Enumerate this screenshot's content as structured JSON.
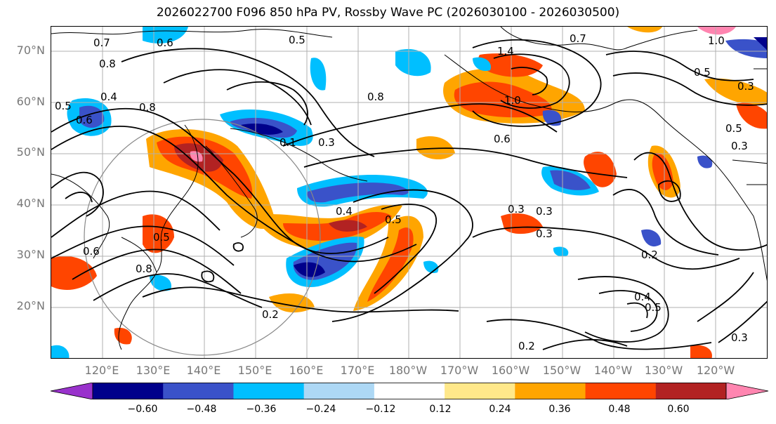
{
  "title": "2026022700 F096 850 hPa PV, Rossby Wave PC (2026030100 - 2026030500)",
  "lat_labels": [
    "70°N",
    "60°N",
    "50°N",
    "40°N",
    "30°N",
    "20°N"
  ],
  "lon_labels": [
    "120°E",
    "130°E",
    "140°E",
    "150°E",
    "160°E",
    "170°E",
    "180°W",
    "170°W",
    "160°W",
    "150°W",
    "140°W",
    "130°W",
    "120°W"
  ],
  "colorbar": {
    "ticks": [
      "−0.60",
      "−0.48",
      "−0.36",
      "−0.24",
      "−0.12",
      "0.12",
      "0.24",
      "0.36",
      "0.48",
      "0.60"
    ],
    "colors": [
      "#9932cc",
      "#00008b",
      "#3a52c9",
      "#00bfff",
      "#add8f5",
      "#ffffff",
      "#ffe88a",
      "#ffa500",
      "#ff4500",
      "#b22222",
      "#ff85b0"
    ]
  },
  "contour_labels": [
    "0.7",
    "0.6",
    "0.8",
    "0.5",
    "0.4",
    "0.5",
    "0.6",
    "0.8",
    "0.1",
    "0.3",
    "0.4",
    "0.5",
    "0.3",
    "0.6",
    "0.2",
    "1.4",
    "1.0",
    "0.7",
    "1.0",
    "0.5",
    "0.3",
    "0.6",
    "0.3",
    "0.5",
    "0.3",
    "0.4",
    "0.5",
    "0.2",
    "0.3",
    "0.2",
    "0.5",
    "0.8",
    "0.8",
    "0.3"
  ]
}
